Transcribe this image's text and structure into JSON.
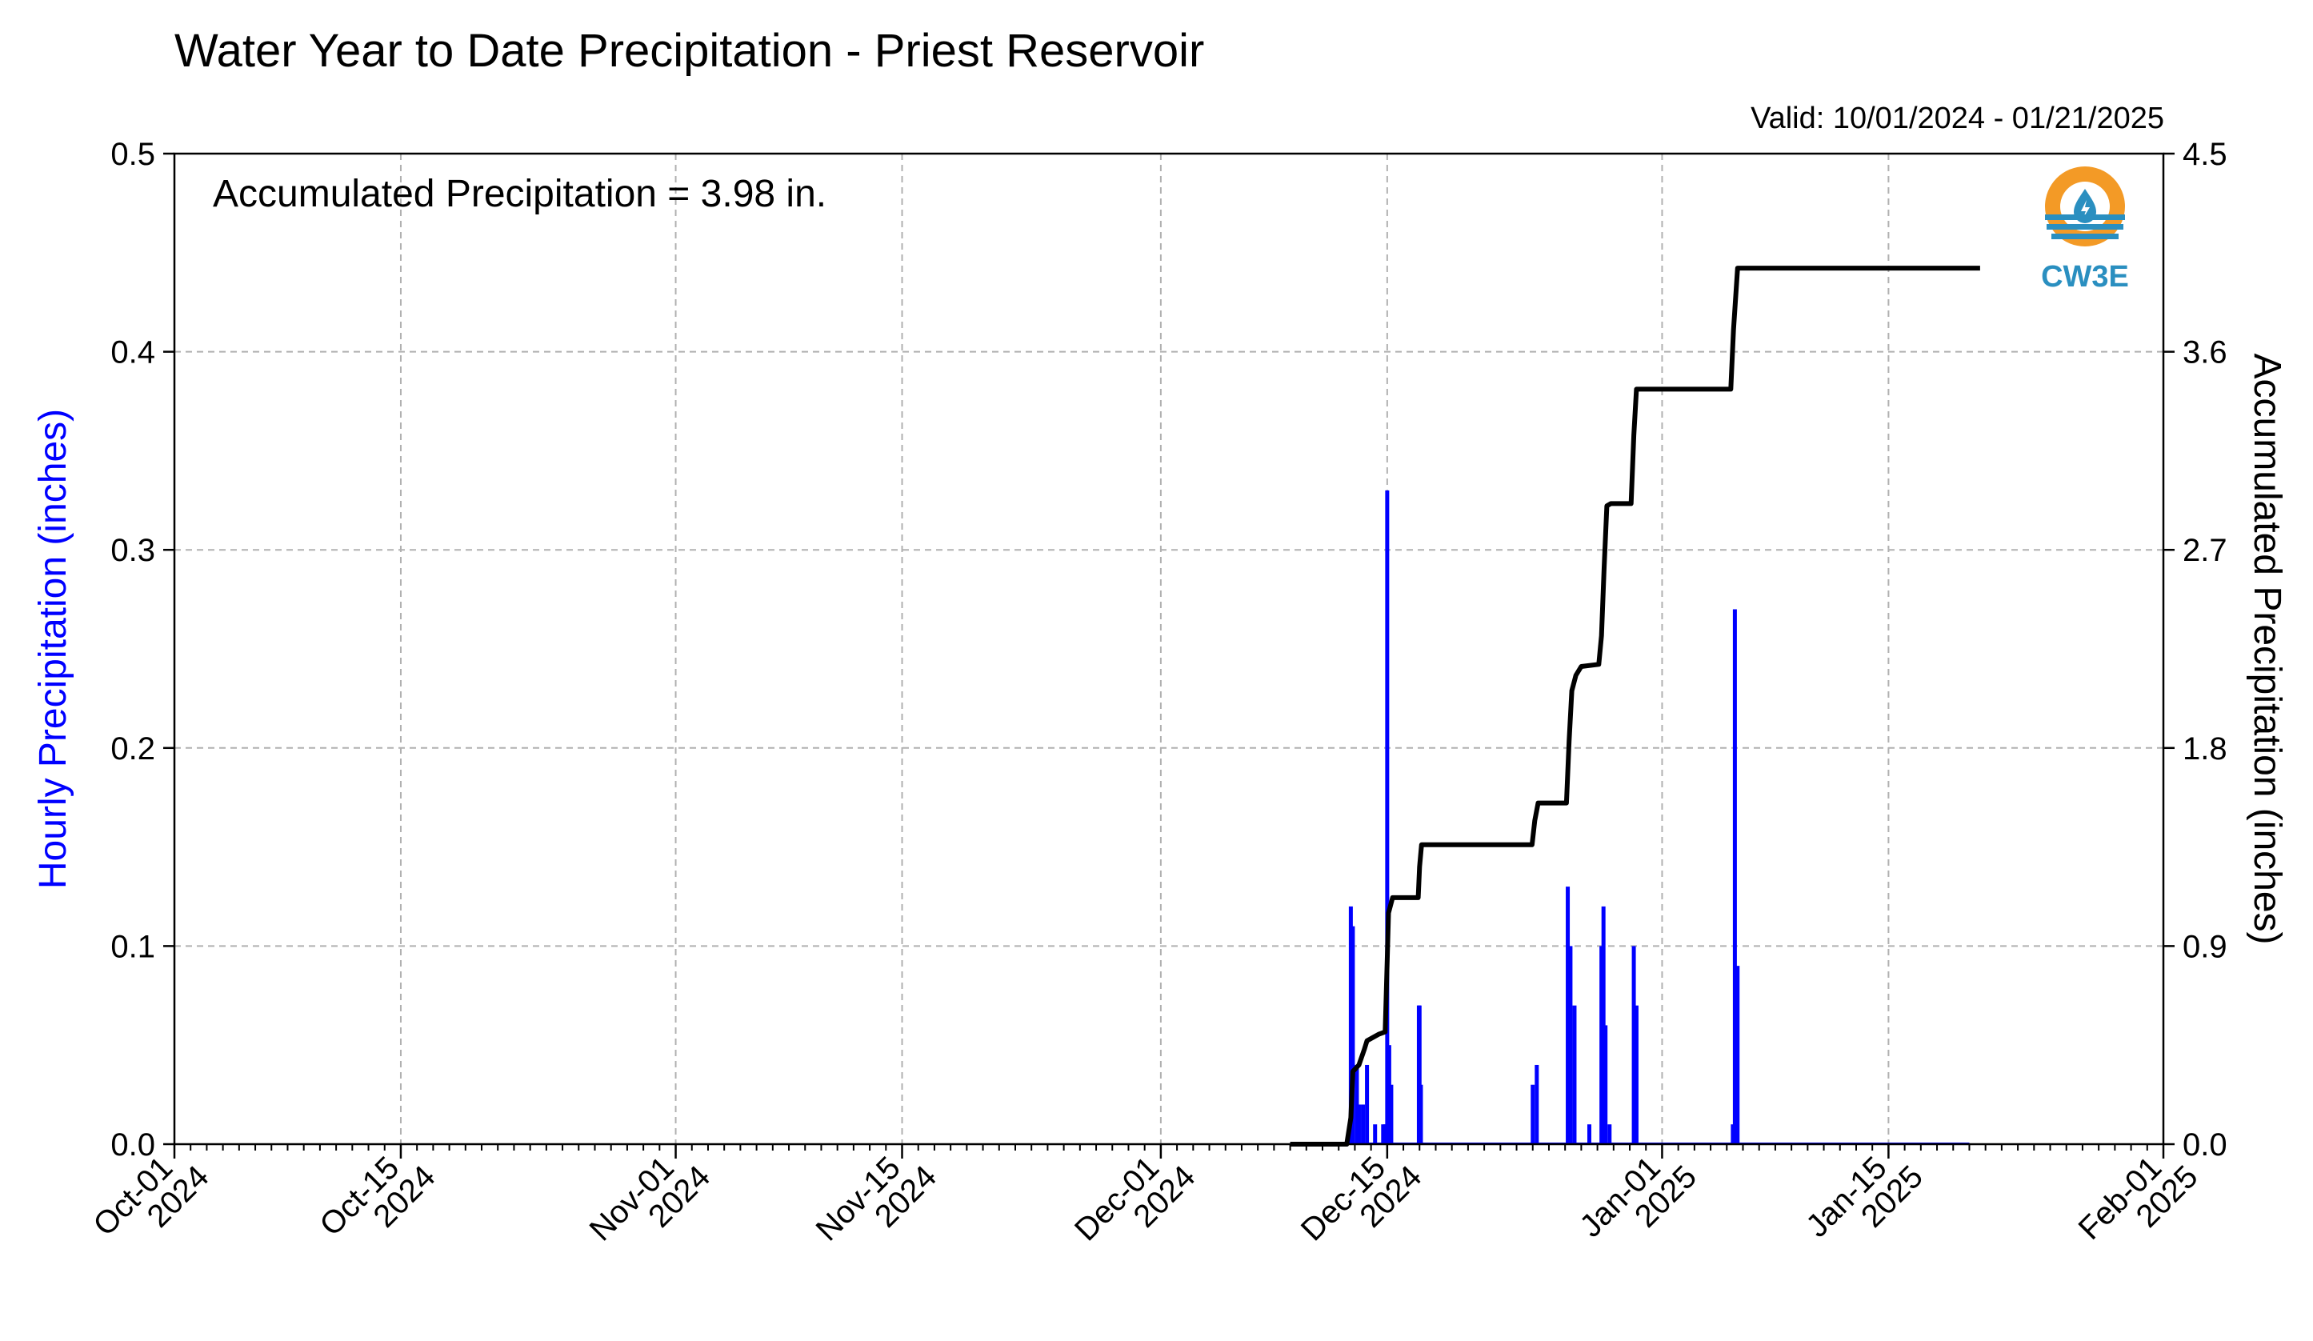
{
  "chart_data": {
    "type": "bar+line",
    "title": "Water Year to Date Precipitation - Priest Reservoir",
    "subtitle": "Valid: 10/01/2024 - 01/21/2025",
    "annotation": "Accumulated Precipitation = 3.98 in.",
    "logo_text": "CW3E",
    "ylabel_left": "Hourly Precipitation (inches)",
    "ylabel_right": "Accumulated Precipitation (inches)",
    "ylim_left": [
      0,
      0.5
    ],
    "ylim_right": [
      0,
      4.5
    ],
    "left_ticks": [
      "0.0",
      "0.1",
      "0.2",
      "0.3",
      "0.4",
      "0.5"
    ],
    "right_ticks": [
      "0.0",
      "0.9",
      "1.8",
      "2.7",
      "3.6",
      "4.5"
    ],
    "x_range": [
      "2024-10-01",
      "2025-02-01"
    ],
    "x_ticks": [
      {
        "date": "2024-10-01",
        "line1": "Oct-01",
        "line2": "2024"
      },
      {
        "date": "2024-10-15",
        "line1": "Oct-15",
        "line2": "2024"
      },
      {
        "date": "2024-11-01",
        "line1": "Nov-01",
        "line2": "2024"
      },
      {
        "date": "2024-11-15",
        "line1": "Nov-15",
        "line2": "2024"
      },
      {
        "date": "2024-12-01",
        "line1": "Dec-01",
        "line2": "2024"
      },
      {
        "date": "2024-12-15",
        "line1": "Dec-15",
        "line2": "2024"
      },
      {
        "date": "2025-01-01",
        "line1": "Jan-01",
        "line2": "2025"
      },
      {
        "date": "2025-01-15",
        "line1": "Jan-15",
        "line2": "2025"
      },
      {
        "date": "2025-02-01",
        "line1": "Feb-01",
        "line2": "2025"
      }
    ],
    "grid": true,
    "colors": {
      "hourly": "#0000ff",
      "accumulated": "#000000",
      "grid": "#b0b0b0",
      "logo_orange": "#f39a26",
      "logo_blue": "#2a8fc0"
    },
    "hourly_series": {
      "name": "Hourly Precipitation",
      "points": [
        [
          "2024-12-12 18:00",
          0.12
        ],
        [
          "2024-12-12 21:00",
          0.11
        ],
        [
          "2024-12-13 03:00",
          0.04
        ],
        [
          "2024-12-13 06:00",
          0.02
        ],
        [
          "2024-12-13 12:00",
          0.02
        ],
        [
          "2024-12-13 18:00",
          0.04
        ],
        [
          "2024-12-14 06:00",
          0.01
        ],
        [
          "2024-12-14 18:00",
          0.01
        ],
        [
          "2024-12-14 21:00",
          0.01
        ],
        [
          "2024-12-15 00:00",
          0.33
        ],
        [
          "2024-12-15 03:00",
          0.05
        ],
        [
          "2024-12-15 06:00",
          0.03
        ],
        [
          "2024-12-16 23:00",
          0.07
        ],
        [
          "2024-12-17 00:00",
          0.07
        ],
        [
          "2024-12-17 02:00",
          0.03
        ],
        [
          "2024-12-24 00:00",
          0.03
        ],
        [
          "2024-12-24 06:00",
          0.04
        ],
        [
          "2024-12-26 04:00",
          0.13
        ],
        [
          "2024-12-26 08:00",
          0.1
        ],
        [
          "2024-12-26 14:00",
          0.07
        ],
        [
          "2024-12-27 12:00",
          0.01
        ],
        [
          "2024-12-28 06:00",
          0.1
        ],
        [
          "2024-12-28 09:00",
          0.12
        ],
        [
          "2024-12-28 12:00",
          0.06
        ],
        [
          "2024-12-28 18:00",
          0.01
        ],
        [
          "2024-12-30 06:00",
          0.1
        ],
        [
          "2024-12-30 10:00",
          0.07
        ],
        [
          "2025-01-05 12:00",
          0.27
        ],
        [
          "2025-01-05 16:00",
          0.09
        ],
        [
          "2025-01-05 09:00",
          0.01
        ]
      ],
      "trace_range": [
        "2024-12-09",
        "2025-01-20"
      ]
    },
    "accumulated_series": {
      "name": "Accumulated Precipitation",
      "points": [
        [
          "2024-12-09 00:00",
          0.0
        ],
        [
          "2024-12-12 12:00",
          0.0
        ],
        [
          "2024-12-12 18:00",
          0.12
        ],
        [
          "2024-12-12 21:00",
          0.33
        ],
        [
          "2024-12-13 06:00",
          0.36
        ],
        [
          "2024-12-13 14:00",
          0.43
        ],
        [
          "2024-12-13 18:00",
          0.47
        ],
        [
          "2024-12-14 12:00",
          0.5
        ],
        [
          "2024-12-14 21:00",
          0.51
        ],
        [
          "2024-12-15 00:00",
          0.84
        ],
        [
          "2024-12-15 02:00",
          1.05
        ],
        [
          "2024-12-15 08:00",
          1.12
        ],
        [
          "2024-12-16 22:00",
          1.12
        ],
        [
          "2024-12-17 00:00",
          1.26
        ],
        [
          "2024-12-17 03:00",
          1.36
        ],
        [
          "2024-12-23 23:00",
          1.36
        ],
        [
          "2024-12-24 03:00",
          1.47
        ],
        [
          "2024-12-24 08:00",
          1.55
        ],
        [
          "2024-12-26 02:00",
          1.55
        ],
        [
          "2024-12-26 06:00",
          1.83
        ],
        [
          "2024-12-26 10:00",
          2.06
        ],
        [
          "2024-12-26 16:00",
          2.13
        ],
        [
          "2024-12-27 00:00",
          2.17
        ],
        [
          "2024-12-28 02:00",
          2.18
        ],
        [
          "2024-12-28 06:00",
          2.31
        ],
        [
          "2024-12-28 10:00",
          2.62
        ],
        [
          "2024-12-28 14:00",
          2.9
        ],
        [
          "2024-12-28 20:00",
          2.91
        ],
        [
          "2024-12-30 02:00",
          2.91
        ],
        [
          "2024-12-30 06:00",
          3.22
        ],
        [
          "2024-12-30 10:00",
          3.43
        ],
        [
          "2025-01-05 06:00",
          3.43
        ],
        [
          "2025-01-05 10:00",
          3.7
        ],
        [
          "2025-01-05 16:00",
          3.98
        ],
        [
          "2025-01-20 16:00",
          3.98
        ]
      ]
    }
  }
}
